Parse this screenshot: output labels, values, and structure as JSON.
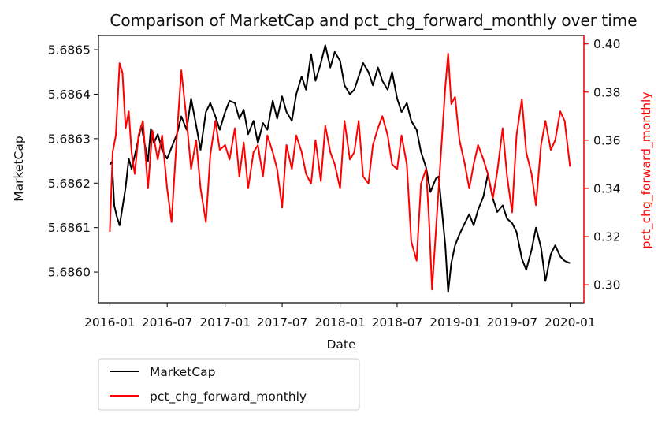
{
  "chart_data": {
    "type": "line",
    "title": "Comparison of MarketCap and pct_chg_forward_monthly over time",
    "xlabel": "Date",
    "ylabel_left": "MarketCap",
    "ylabel_right": "pct_chg_forward_monthly",
    "x_ticks": [
      "2016-01",
      "2016-07",
      "2017-01",
      "2017-07",
      "2018-01",
      "2018-07",
      "2019-01",
      "2019-07",
      "2020-01"
    ],
    "y_left_ticks": [
      "5.6860",
      "5.6861",
      "5.6862",
      "5.6863",
      "5.6864",
      "5.6865"
    ],
    "y_right_ticks": [
      "0.30",
      "0.32",
      "0.34",
      "0.36",
      "0.38",
      "0.40"
    ],
    "xlim": [
      "2015-11-26",
      "2020-02-14"
    ],
    "ylim_left": [
      5.685931,
      5.686532
    ],
    "ylim_right": [
      0.2925,
      0.4035
    ],
    "grid": false,
    "legend_position": "below-left",
    "colors": {
      "MarketCap": "#000000",
      "pct_chg_forward_monthly": "#ff0000"
    },
    "series": [
      {
        "name": "MarketCap",
        "axis": "left",
        "color": "#000000",
        "points": [
          [
            "2016-01-01",
            5.686242
          ],
          [
            "2016-01-08",
            5.686248
          ],
          [
            "2016-01-15",
            5.68615
          ],
          [
            "2016-01-22",
            5.686128
          ],
          [
            "2016-02-01",
            5.686105
          ],
          [
            "2016-02-10",
            5.686145
          ],
          [
            "2016-02-20",
            5.68619
          ],
          [
            "2016-03-01",
            5.686255
          ],
          [
            "2016-03-10",
            5.686232
          ],
          [
            "2016-03-20",
            5.686262
          ],
          [
            "2016-04-01",
            5.6863
          ],
          [
            "2016-04-10",
            5.68633
          ],
          [
            "2016-04-20",
            5.68629
          ],
          [
            "2016-05-01",
            5.68625
          ],
          [
            "2016-05-10",
            5.686322
          ],
          [
            "2016-05-20",
            5.68629
          ],
          [
            "2016-06-01",
            5.68631
          ],
          [
            "2016-06-15",
            5.686275
          ],
          [
            "2016-07-01",
            5.686255
          ],
          [
            "2016-07-15",
            5.68628
          ],
          [
            "2016-08-01",
            5.68631
          ],
          [
            "2016-08-15",
            5.68635
          ],
          [
            "2016-09-01",
            5.68632
          ],
          [
            "2016-09-15",
            5.68639
          ],
          [
            "2016-10-01",
            5.68633
          ],
          [
            "2016-10-15",
            5.686275
          ],
          [
            "2016-11-01",
            5.68636
          ],
          [
            "2016-11-15",
            5.68638
          ],
          [
            "2016-12-01",
            5.68635
          ],
          [
            "2016-12-15",
            5.68632
          ],
          [
            "2017-01-01",
            5.68636
          ],
          [
            "2017-01-15",
            5.686385
          ],
          [
            "2017-02-01",
            5.68638
          ],
          [
            "2017-02-15",
            5.686345
          ],
          [
            "2017-03-01",
            5.686365
          ],
          [
            "2017-03-15",
            5.68631
          ],
          [
            "2017-04-01",
            5.68634
          ],
          [
            "2017-04-15",
            5.68629
          ],
          [
            "2017-05-01",
            5.686335
          ],
          [
            "2017-05-15",
            5.68632
          ],
          [
            "2017-06-01",
            5.686385
          ],
          [
            "2017-06-15",
            5.686345
          ],
          [
            "2017-07-01",
            5.686395
          ],
          [
            "2017-07-15",
            5.68636
          ],
          [
            "2017-08-01",
            5.68634
          ],
          [
            "2017-08-15",
            5.6864
          ],
          [
            "2017-09-01",
            5.68644
          ],
          [
            "2017-09-15",
            5.68641
          ],
          [
            "2017-10-01",
            5.68649
          ],
          [
            "2017-10-15",
            5.68643
          ],
          [
            "2017-11-01",
            5.68647
          ],
          [
            "2017-11-15",
            5.68651
          ],
          [
            "2017-12-01",
            5.68646
          ],
          [
            "2017-12-15",
            5.686495
          ],
          [
            "2018-01-01",
            5.686475
          ],
          [
            "2018-01-15",
            5.68642
          ],
          [
            "2018-02-01",
            5.6864
          ],
          [
            "2018-02-15",
            5.68641
          ],
          [
            "2018-03-01",
            5.68644
          ],
          [
            "2018-03-15",
            5.68647
          ],
          [
            "2018-04-01",
            5.68645
          ],
          [
            "2018-04-15",
            5.68642
          ],
          [
            "2018-05-01",
            5.68646
          ],
          [
            "2018-05-15",
            5.68643
          ],
          [
            "2018-06-01",
            5.68641
          ],
          [
            "2018-06-15",
            5.68645
          ],
          [
            "2018-07-01",
            5.68639
          ],
          [
            "2018-07-15",
            5.68636
          ],
          [
            "2018-08-01",
            5.68638
          ],
          [
            "2018-08-15",
            5.68634
          ],
          [
            "2018-09-01",
            5.68632
          ],
          [
            "2018-09-15",
            5.68627
          ],
          [
            "2018-10-01",
            5.686235
          ],
          [
            "2018-10-15",
            5.68618
          ],
          [
            "2018-11-01",
            5.68621
          ],
          [
            "2018-11-10",
            5.686215
          ],
          [
            "2018-11-20",
            5.68614
          ],
          [
            "2018-12-01",
            5.68606
          ],
          [
            "2018-12-10",
            5.685955
          ],
          [
            "2018-12-20",
            5.68602
          ],
          [
            "2019-01-01",
            5.68606
          ],
          [
            "2019-01-15",
            5.686085
          ],
          [
            "2019-02-01",
            5.68611
          ],
          [
            "2019-02-15",
            5.68613
          ],
          [
            "2019-03-01",
            5.686105
          ],
          [
            "2019-03-15",
            5.68614
          ],
          [
            "2019-04-01",
            5.68617
          ],
          [
            "2019-04-15",
            5.68622
          ],
          [
            "2019-05-01",
            5.686165
          ],
          [
            "2019-05-15",
            5.686135
          ],
          [
            "2019-06-01",
            5.68615
          ],
          [
            "2019-06-15",
            5.68612
          ],
          [
            "2019-07-01",
            5.68611
          ],
          [
            "2019-07-15",
            5.68609
          ],
          [
            "2019-08-01",
            5.68603
          ],
          [
            "2019-08-15",
            5.686005
          ],
          [
            "2019-09-01",
            5.68605
          ],
          [
            "2019-09-15",
            5.6861
          ],
          [
            "2019-10-01",
            5.686055
          ],
          [
            "2019-10-15",
            5.68598
          ],
          [
            "2019-11-01",
            5.68604
          ],
          [
            "2019-11-15",
            5.68606
          ],
          [
            "2019-12-01",
            5.686035
          ],
          [
            "2019-12-15",
            5.686025
          ],
          [
            "2020-01-01",
            5.68602
          ]
        ]
      },
      {
        "name": "pct_chg_forward_monthly",
        "axis": "right",
        "color": "#ff0000",
        "points": [
          [
            "2016-01-01",
            0.322
          ],
          [
            "2016-01-10",
            0.355
          ],
          [
            "2016-01-20",
            0.362
          ],
          [
            "2016-02-01",
            0.392
          ],
          [
            "2016-02-10",
            0.388
          ],
          [
            "2016-02-20",
            0.365
          ],
          [
            "2016-03-01",
            0.372
          ],
          [
            "2016-03-10",
            0.355
          ],
          [
            "2016-03-20",
            0.346
          ],
          [
            "2016-04-01",
            0.362
          ],
          [
            "2016-04-15",
            0.368
          ],
          [
            "2016-05-01",
            0.34
          ],
          [
            "2016-05-15",
            0.364
          ],
          [
            "2016-06-01",
            0.352
          ],
          [
            "2016-06-15",
            0.362
          ],
          [
            "2016-07-01",
            0.34
          ],
          [
            "2016-07-15",
            0.326
          ],
          [
            "2016-08-01",
            0.362
          ],
          [
            "2016-08-15",
            0.389
          ],
          [
            "2016-09-01",
            0.368
          ],
          [
            "2016-09-15",
            0.348
          ],
          [
            "2016-10-01",
            0.36
          ],
          [
            "2016-10-15",
            0.34
          ],
          [
            "2016-11-01",
            0.326
          ],
          [
            "2016-11-15",
            0.354
          ],
          [
            "2016-12-01",
            0.368
          ],
          [
            "2016-12-15",
            0.356
          ],
          [
            "2017-01-01",
            0.358
          ],
          [
            "2017-01-15",
            0.352
          ],
          [
            "2017-02-01",
            0.365
          ],
          [
            "2017-02-15",
            0.345
          ],
          [
            "2017-03-01",
            0.359
          ],
          [
            "2017-03-15",
            0.34
          ],
          [
            "2017-04-01",
            0.355
          ],
          [
            "2017-04-15",
            0.358
          ],
          [
            "2017-05-01",
            0.345
          ],
          [
            "2017-05-15",
            0.362
          ],
          [
            "2017-06-01",
            0.355
          ],
          [
            "2017-06-15",
            0.348
          ],
          [
            "2017-07-01",
            0.332
          ],
          [
            "2017-07-15",
            0.358
          ],
          [
            "2017-08-01",
            0.348
          ],
          [
            "2017-08-15",
            0.362
          ],
          [
            "2017-09-01",
            0.355
          ],
          [
            "2017-09-15",
            0.346
          ],
          [
            "2017-10-01",
            0.342
          ],
          [
            "2017-10-15",
            0.36
          ],
          [
            "2017-11-01",
            0.343
          ],
          [
            "2017-11-15",
            0.366
          ],
          [
            "2017-12-01",
            0.355
          ],
          [
            "2017-12-15",
            0.35
          ],
          [
            "2018-01-01",
            0.34
          ],
          [
            "2018-01-15",
            0.368
          ],
          [
            "2018-02-01",
            0.352
          ],
          [
            "2018-02-15",
            0.355
          ],
          [
            "2018-03-01",
            0.368
          ],
          [
            "2018-03-15",
            0.345
          ],
          [
            "2018-04-01",
            0.342
          ],
          [
            "2018-04-15",
            0.358
          ],
          [
            "2018-05-01",
            0.365
          ],
          [
            "2018-05-15",
            0.37
          ],
          [
            "2018-06-01",
            0.362
          ],
          [
            "2018-06-15",
            0.35
          ],
          [
            "2018-07-01",
            0.348
          ],
          [
            "2018-07-15",
            0.362
          ],
          [
            "2018-08-01",
            0.35
          ],
          [
            "2018-08-15",
            0.318
          ],
          [
            "2018-09-01",
            0.31
          ],
          [
            "2018-09-15",
            0.342
          ],
          [
            "2018-10-01",
            0.348
          ],
          [
            "2018-10-10",
            0.328
          ],
          [
            "2018-10-20",
            0.298
          ],
          [
            "2018-11-01",
            0.322
          ],
          [
            "2018-11-15",
            0.35
          ],
          [
            "2018-12-01",
            0.382
          ],
          [
            "2018-12-10",
            0.396
          ],
          [
            "2018-12-20",
            0.375
          ],
          [
            "2019-01-01",
            0.378
          ],
          [
            "2019-01-15",
            0.36
          ],
          [
            "2019-02-01",
            0.35
          ],
          [
            "2019-02-15",
            0.34
          ],
          [
            "2019-03-01",
            0.35
          ],
          [
            "2019-03-15",
            0.358
          ],
          [
            "2019-04-01",
            0.352
          ],
          [
            "2019-04-15",
            0.346
          ],
          [
            "2019-05-01",
            0.336
          ],
          [
            "2019-05-15",
            0.347
          ],
          [
            "2019-06-01",
            0.365
          ],
          [
            "2019-06-15",
            0.345
          ],
          [
            "2019-07-01",
            0.33
          ],
          [
            "2019-07-15",
            0.362
          ],
          [
            "2019-08-01",
            0.377
          ],
          [
            "2019-08-15",
            0.355
          ],
          [
            "2019-09-01",
            0.346
          ],
          [
            "2019-09-15",
            0.333
          ],
          [
            "2019-10-01",
            0.358
          ],
          [
            "2019-10-15",
            0.368
          ],
          [
            "2019-11-01",
            0.356
          ],
          [
            "2019-11-15",
            0.36
          ],
          [
            "2019-12-01",
            0.372
          ],
          [
            "2019-12-15",
            0.368
          ],
          [
            "2020-01-01",
            0.349
          ]
        ]
      }
    ]
  }
}
